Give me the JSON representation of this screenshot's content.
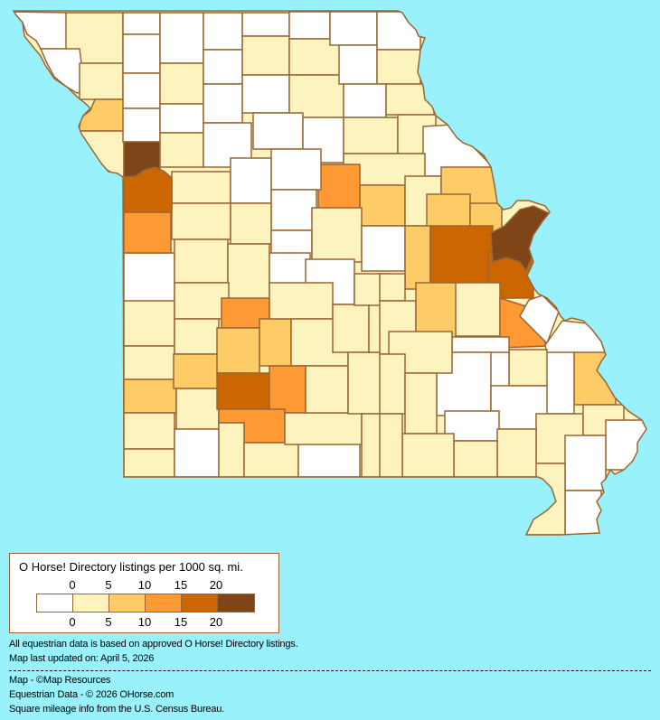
{
  "legend": {
    "title": "O Horse! Directory listings per 1000 sq. mi.",
    "top_labels": [
      "0",
      "5",
      "10",
      "15",
      "20"
    ],
    "bottom_labels": [
      "0",
      "5",
      "10",
      "15",
      "20"
    ],
    "bin_colors": [
      "#FFFFFF",
      "#FDF3BE",
      "#FECC66",
      "#FE9933",
      "#CC6600",
      "#7E4519"
    ]
  },
  "colors": {
    "background": "#99F1FB",
    "border": "#996633"
  },
  "map": {
    "county_levels": [
      0,
      1,
      0,
      1,
      2,
      1,
      0,
      0,
      0,
      0,
      5,
      0,
      1,
      0,
      1,
      0,
      0,
      0,
      0,
      0,
      1,
      0,
      0,
      1,
      1,
      0,
      0,
      0,
      0,
      0,
      1,
      0,
      1,
      1,
      1,
      0,
      1,
      2,
      3,
      1,
      2,
      2,
      2,
      1,
      0,
      0,
      0,
      1,
      1,
      0,
      1,
      0,
      2,
      4,
      4,
      5,
      0,
      4,
      3,
      1,
      1,
      0,
      0,
      1,
      1,
      2,
      1,
      1,
      1,
      3,
      1,
      2,
      1,
      0,
      2,
      2,
      1,
      1,
      4,
      3,
      3,
      1,
      1,
      0,
      1,
      1,
      1,
      1,
      1,
      1,
      1,
      1,
      1,
      2,
      1,
      3,
      0,
      0,
      2,
      0,
      1,
      0,
      0,
      0,
      1,
      1,
      1,
      0,
      0,
      1,
      1,
      0,
      0,
      0,
      1,
      1,
      1,
      1,
      1
    ]
  },
  "notes": {
    "line1": "All equestrian data is based on approved O Horse! Directory listings.",
    "line2": "Map last updated on: April 5, 2026"
  },
  "credits": {
    "map": "Map - ©Map Resources",
    "data": "Equestrian Data - © 2026 OHorse.com",
    "census": "Square mileage info from the U.S. Census Bureau."
  }
}
